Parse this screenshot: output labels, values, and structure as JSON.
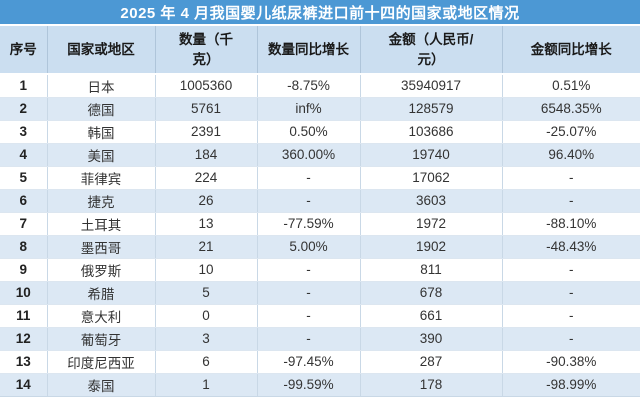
{
  "title": "2025 年 4 月我国婴儿纸尿裤进口前十四的国家或地区情况",
  "display": {
    "headers": [
      "序号",
      "国家或地区",
      "数量（千\n克）",
      "数量同比增长",
      "金额（人民币/\n元）",
      "金额同比增长"
    ]
  },
  "chart_data": {
    "type": "table",
    "title": "2025 年 4 月我国婴儿纸尿裤进口前十四的国家或地区情况",
    "columns": [
      "序号",
      "国家或地区",
      "数量（千克）",
      "数量同比增长",
      "金额（人民币/元）",
      "金额同比增长"
    ],
    "rows": [
      [
        "1",
        "日本",
        "1005360",
        "-8.75%",
        "35940917",
        "0.51%"
      ],
      [
        "2",
        "德国",
        "5761",
        "inf%",
        "128579",
        "6548.35%"
      ],
      [
        "3",
        "韩国",
        "2391",
        "0.50%",
        "103686",
        "-25.07%"
      ],
      [
        "4",
        "美国",
        "184",
        "360.00%",
        "19740",
        "96.40%"
      ],
      [
        "5",
        "菲律宾",
        "224",
        "-",
        "17062",
        "-"
      ],
      [
        "6",
        "捷克",
        "26",
        "-",
        "3603",
        "-"
      ],
      [
        "7",
        "土耳其",
        "13",
        "-77.59%",
        "1972",
        "-88.10%"
      ],
      [
        "8",
        "墨西哥",
        "21",
        "5.00%",
        "1902",
        "-48.43%"
      ],
      [
        "9",
        "俄罗斯",
        "10",
        "-",
        "811",
        "-"
      ],
      [
        "10",
        "希腊",
        "5",
        "-",
        "678",
        "-"
      ],
      [
        "11",
        "意大利",
        "0",
        "-",
        "661",
        "-"
      ],
      [
        "12",
        "葡萄牙",
        "3",
        "-",
        "390",
        "-"
      ],
      [
        "13",
        "印度尼西亚",
        "6",
        "-97.45%",
        "287",
        "-90.38%"
      ],
      [
        "14",
        "泰国",
        "1",
        "-99.59%",
        "178",
        "-98.99%"
      ]
    ]
  },
  "colors": {
    "title_bar_bg": "#4C98D4",
    "title_text": "#FFFFFF",
    "header_bg": "#CBDEF0",
    "header_text": "#1A1A1A",
    "stripe_row_bg": "#DCE8F4",
    "plain_row_bg": "#FFFFFF",
    "cell_text": "#333333",
    "grid_border": "#C9D8E6"
  }
}
